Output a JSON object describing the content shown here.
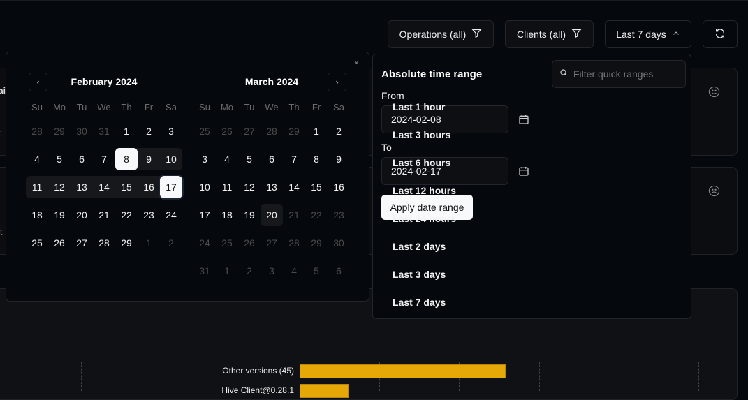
{
  "toolbar": {
    "operations": "Operations (all)",
    "clients": "Clients (all)",
    "range": "Last 7 days"
  },
  "background": {
    "frag1": "ai",
    "frag2": "t",
    "frag3": "st",
    "chart_label_1": "Other versions (45)",
    "chart_label_2": "Hive Client@0.28.1",
    "bar_color": "#e5a806"
  },
  "calendar": {
    "weekdays": [
      "Su",
      "Mo",
      "Tu",
      "We",
      "Th",
      "Fr",
      "Sa"
    ],
    "months": [
      {
        "title": "February 2024",
        "weeks": [
          [
            [
              "28",
              "out"
            ],
            [
              "29",
              "out"
            ],
            [
              "30",
              "out"
            ],
            [
              "31",
              "out"
            ],
            [
              "1",
              ""
            ],
            [
              "2",
              ""
            ],
            [
              "3",
              ""
            ]
          ],
          [
            [
              "4",
              ""
            ],
            [
              "5",
              ""
            ],
            [
              "6",
              ""
            ],
            [
              "7",
              ""
            ],
            [
              "8",
              "start"
            ],
            [
              "9",
              "range"
            ],
            [
              "10",
              "range"
            ]
          ],
          [
            [
              "11",
              "range"
            ],
            [
              "12",
              "range"
            ],
            [
              "13",
              "range"
            ],
            [
              "14",
              "range"
            ],
            [
              "15",
              "range"
            ],
            [
              "16",
              "range"
            ],
            [
              "17",
              "end"
            ]
          ],
          [
            [
              "18",
              ""
            ],
            [
              "19",
              ""
            ],
            [
              "20",
              ""
            ],
            [
              "21",
              ""
            ],
            [
              "22",
              ""
            ],
            [
              "23",
              ""
            ],
            [
              "24",
              ""
            ]
          ],
          [
            [
              "25",
              ""
            ],
            [
              "26",
              ""
            ],
            [
              "27",
              ""
            ],
            [
              "28",
              ""
            ],
            [
              "29",
              ""
            ],
            [
              "1",
              "out"
            ],
            [
              "2",
              "out"
            ]
          ]
        ]
      },
      {
        "title": "March 2024",
        "weeks": [
          [
            [
              "25",
              "out"
            ],
            [
              "26",
              "out"
            ],
            [
              "27",
              "out"
            ],
            [
              "28",
              "out"
            ],
            [
              "29",
              "out"
            ],
            [
              "1",
              ""
            ],
            [
              "2",
              ""
            ]
          ],
          [
            [
              "3",
              ""
            ],
            [
              "4",
              ""
            ],
            [
              "5",
              ""
            ],
            [
              "6",
              ""
            ],
            [
              "7",
              ""
            ],
            [
              "8",
              ""
            ],
            [
              "9",
              ""
            ]
          ],
          [
            [
              "10",
              ""
            ],
            [
              "11",
              ""
            ],
            [
              "12",
              ""
            ],
            [
              "13",
              ""
            ],
            [
              "14",
              ""
            ],
            [
              "15",
              ""
            ],
            [
              "16",
              ""
            ]
          ],
          [
            [
              "17",
              ""
            ],
            [
              "18",
              ""
            ],
            [
              "19",
              ""
            ],
            [
              "20",
              "today"
            ],
            [
              "21",
              "dis"
            ],
            [
              "22",
              "dis"
            ],
            [
              "23",
              "dis"
            ]
          ],
          [
            [
              "24",
              "dis"
            ],
            [
              "25",
              "dis"
            ],
            [
              "26",
              "dis"
            ],
            [
              "27",
              "dis"
            ],
            [
              "28",
              "dis"
            ],
            [
              "29",
              "dis"
            ],
            [
              "30",
              "dis"
            ]
          ],
          [
            [
              "31",
              "dis"
            ],
            [
              "1",
              "dis"
            ],
            [
              "2",
              "dis"
            ],
            [
              "3",
              "dis"
            ],
            [
              "4",
              "dis"
            ],
            [
              "5",
              "dis"
            ],
            [
              "6",
              "dis"
            ]
          ]
        ]
      }
    ]
  },
  "range_panel": {
    "title": "Absolute time range",
    "from_label": "From",
    "from_value": "2024-02-08",
    "to_label": "To",
    "to_value": "2024-02-17",
    "apply": "Apply date range",
    "filter_placeholder": "Filter quick ranges",
    "quick": [
      "Last 1 hour",
      "Last 3 hours",
      "Last 6 hours",
      "Last 12 hours",
      "Last 24 hours",
      "Last 2 days",
      "Last 3 days",
      "Last 7 days"
    ]
  }
}
